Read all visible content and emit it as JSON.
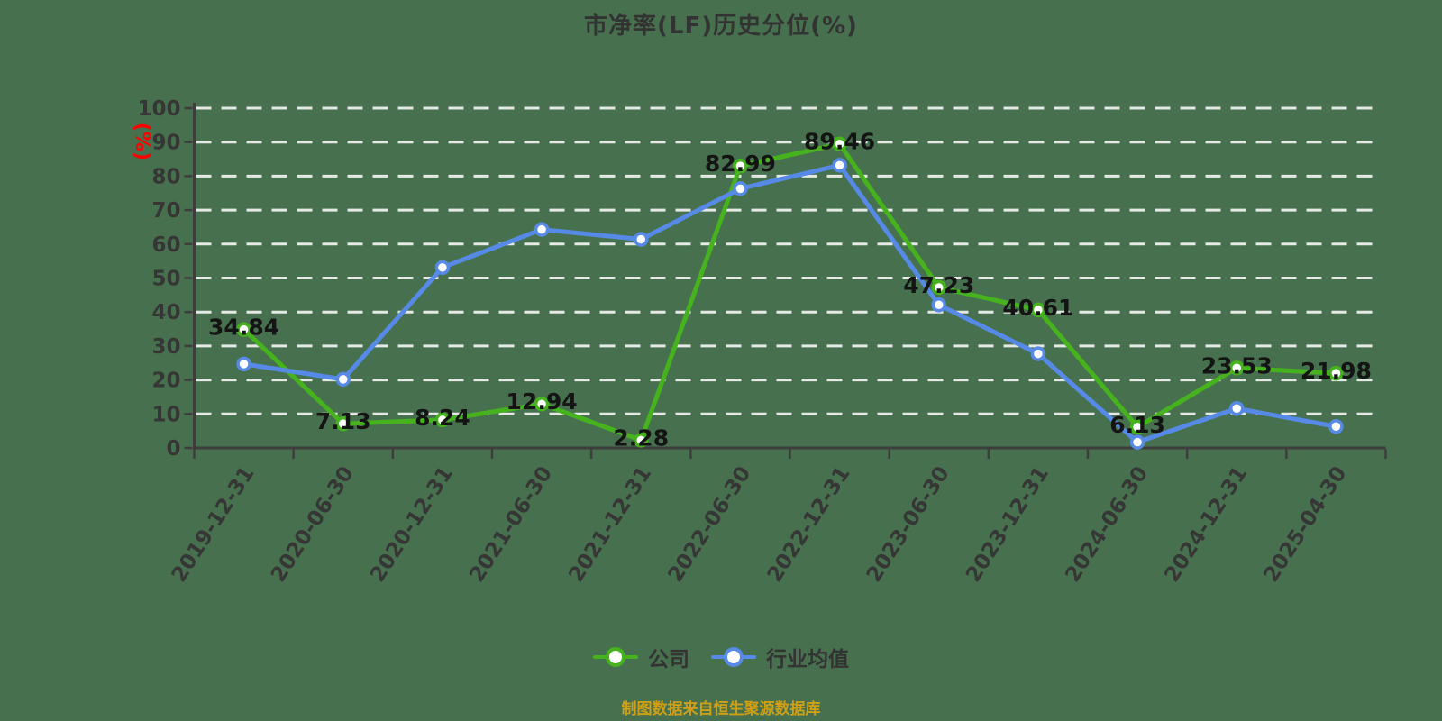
{
  "header": {
    "title": "市净率(LF)历史分位(%)"
  },
  "colors": {
    "background": "#47714e",
    "company_series": "#46b31e",
    "industry_series": "#568ae6",
    "gridline": "#efefef",
    "axis": "#3d3d3d",
    "tick_label": "#363636",
    "data_label": "#141414",
    "y_unit_label": "#ff0000",
    "footer_note": "#cf9f15",
    "title_text": "#333333"
  },
  "chart_data": {
    "type": "line",
    "title": "市净率(LF)历史分位(%)",
    "xlabel": "",
    "ylabel": "(%)",
    "ylim": [
      0,
      100
    ],
    "ytick_step": 10,
    "grid": "horizontal-dashed",
    "legend_position": "bottom-center",
    "marker_style": "circle-white-fill",
    "categories": [
      "2019-12-31",
      "2020-06-30",
      "2020-12-31",
      "2021-06-30",
      "2021-12-31",
      "2022-06-30",
      "2022-12-31",
      "2023-06-30",
      "2023-12-31",
      "2024-06-30",
      "2024-12-31",
      "2025-04-30"
    ],
    "series": [
      {
        "name": "公司",
        "color": "#46b31e",
        "data_labels": true,
        "values": [
          34.84,
          7.13,
          8.24,
          12.94,
          2.28,
          82.99,
          89.46,
          47.23,
          40.61,
          6.13,
          23.53,
          21.98
        ]
      },
      {
        "name": "行业均值",
        "color": "#568ae6",
        "data_labels": false,
        "values": [
          24.7,
          20.2,
          53.1,
          64.3,
          61.4,
          76.3,
          83.2,
          42.1,
          27.7,
          1.7,
          11.6,
          6.3
        ]
      }
    ]
  },
  "footer": {
    "note": "制图数据来自恒生聚源数据库"
  }
}
